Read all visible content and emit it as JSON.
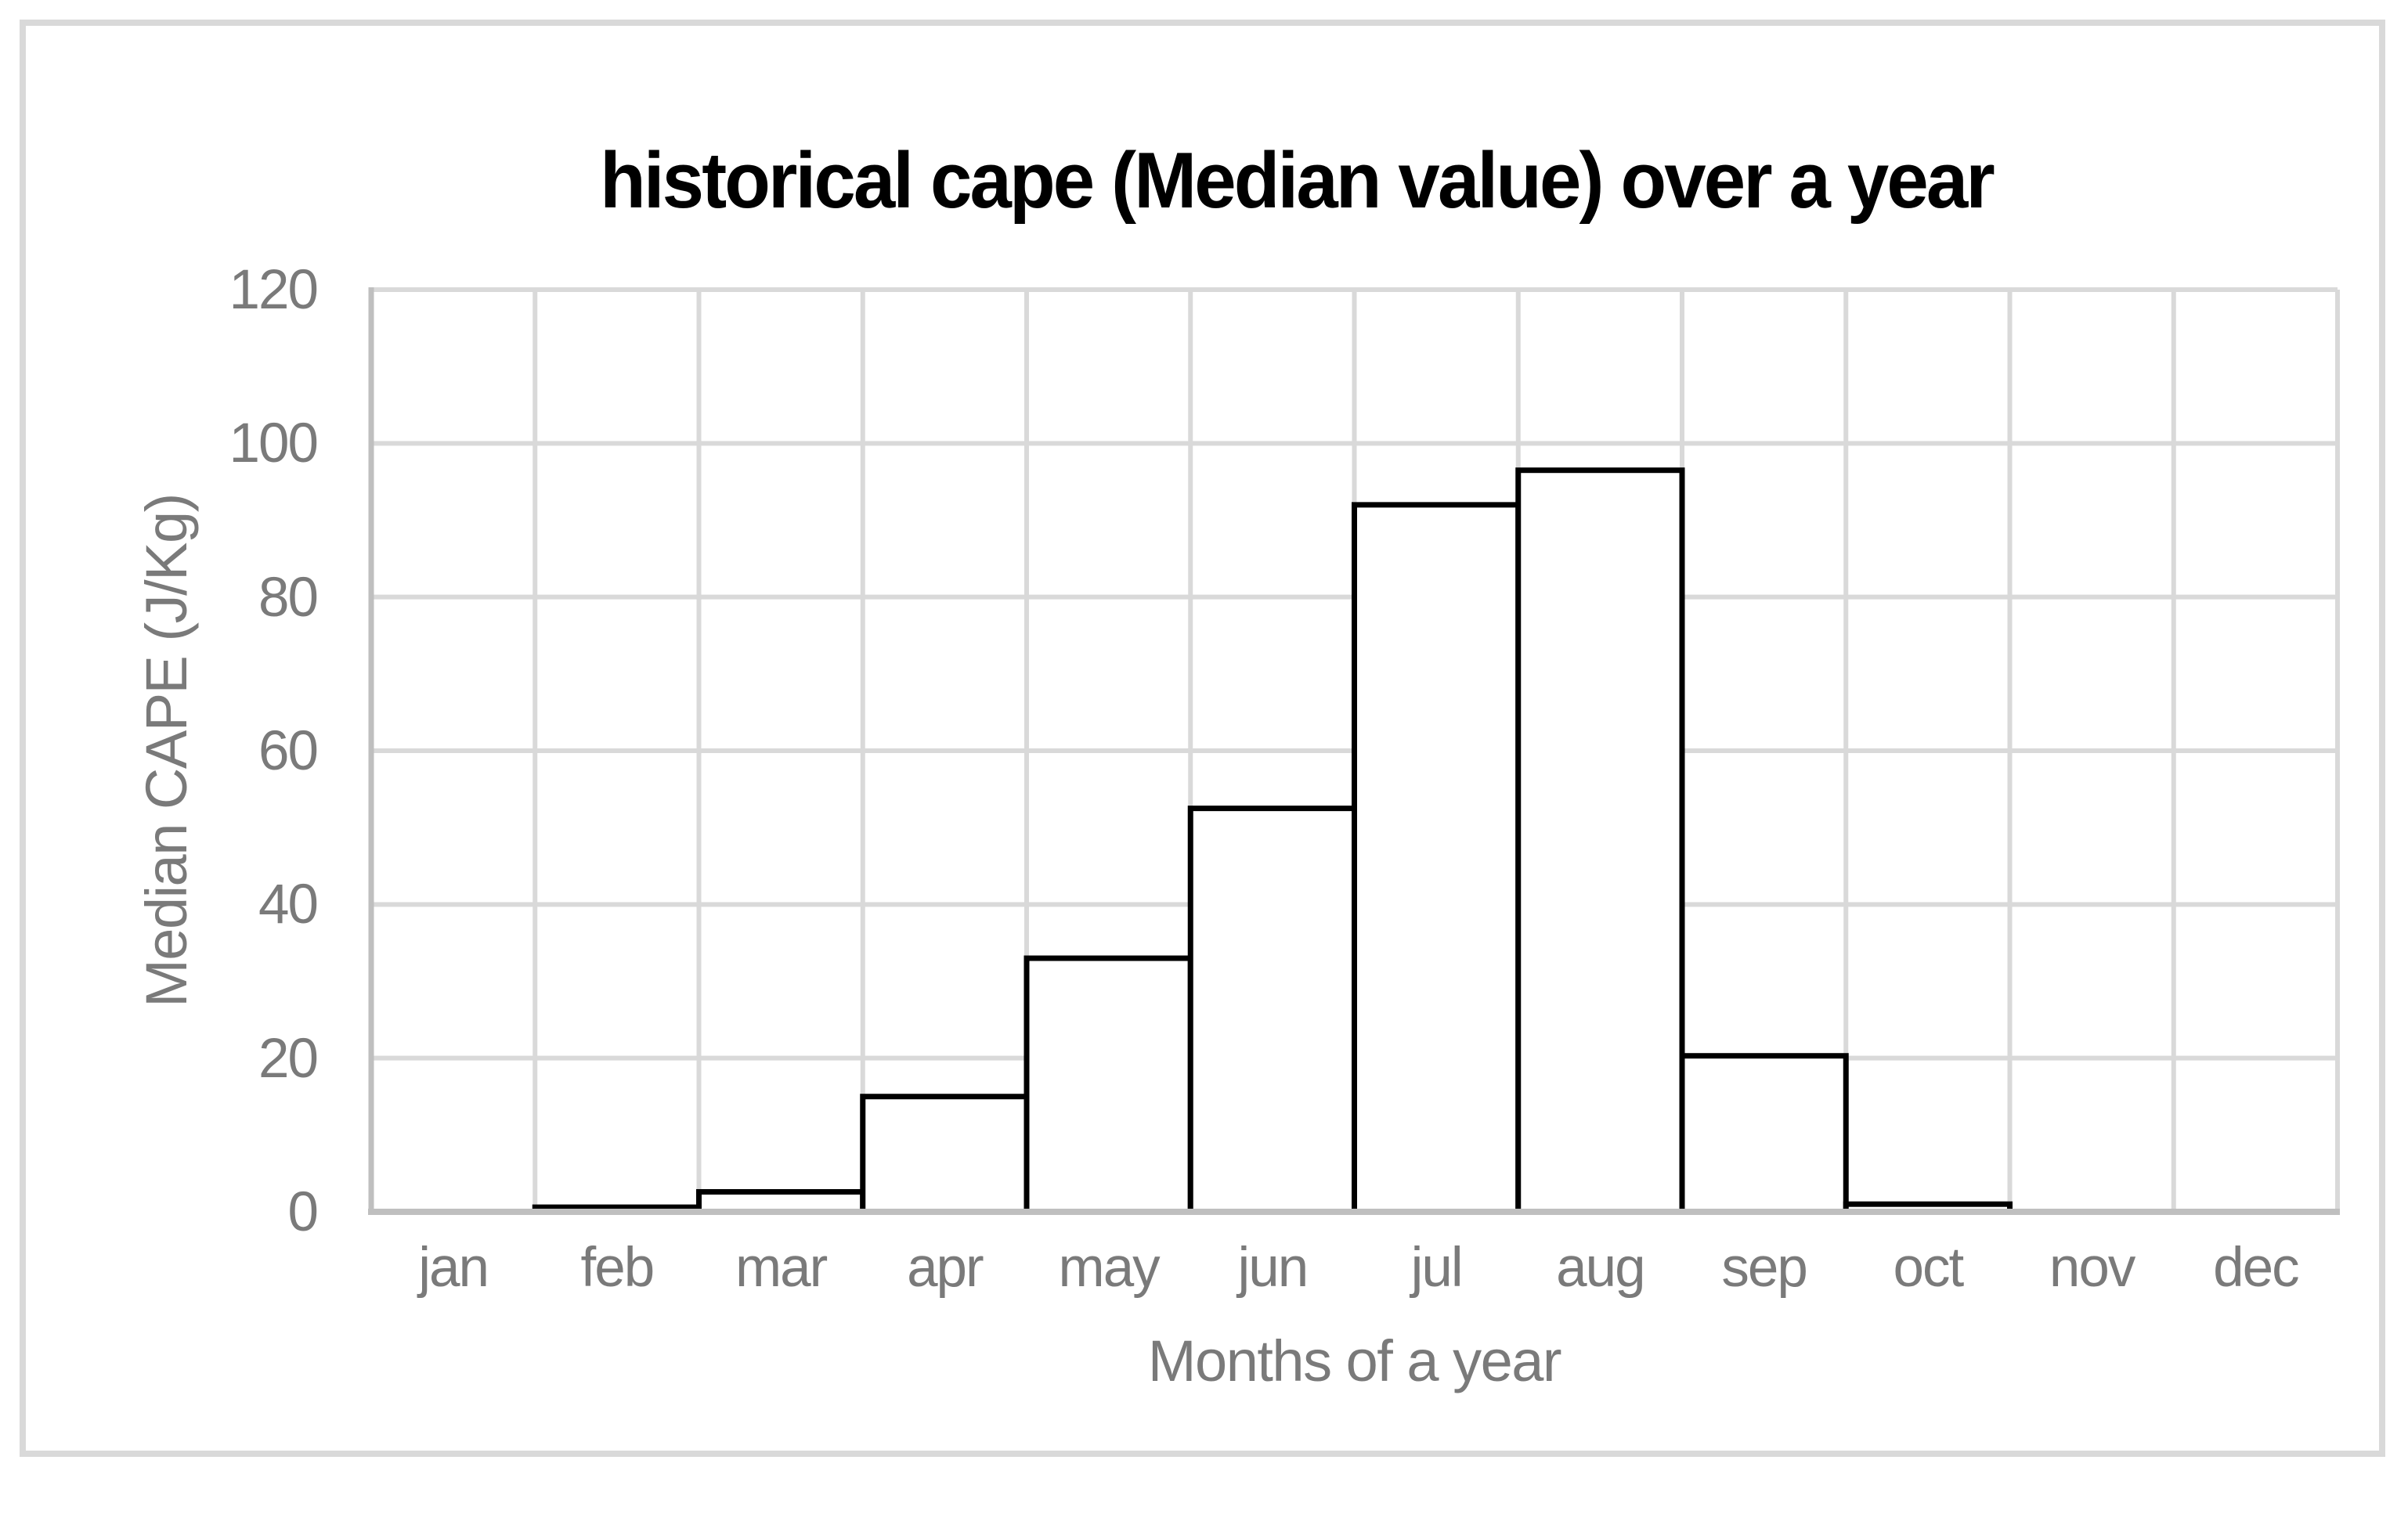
{
  "chart_data": {
    "type": "bar",
    "title": "historical cape (Median value) over a year",
    "xlabel": "Months of a year",
    "ylabel": "Median CAPE (J/Kg)",
    "categories": [
      "jan",
      "feb",
      "mar",
      "apr",
      "may",
      "jun",
      "jul",
      "aug",
      "sep",
      "oct",
      "nov",
      "dec"
    ],
    "values": [
      0,
      0.6,
      2.6,
      15,
      33,
      52.5,
      92,
      96.5,
      20.3,
      1,
      0,
      0
    ],
    "ylim": [
      0,
      120
    ],
    "yticks": [
      0,
      20,
      40,
      60,
      80,
      100,
      120
    ],
    "grid": true,
    "legend": false,
    "bar_gap_percent": 0,
    "colors": {
      "bar_fill": "#ffffff",
      "bar_border": "#000000",
      "gridline": "#d9d9d9",
      "axis_line": "#bfbfbf",
      "label_text": "#7a7a7a",
      "title_text": "#000000",
      "frame_border": "#d9d9d9",
      "background": "#ffffff"
    }
  }
}
